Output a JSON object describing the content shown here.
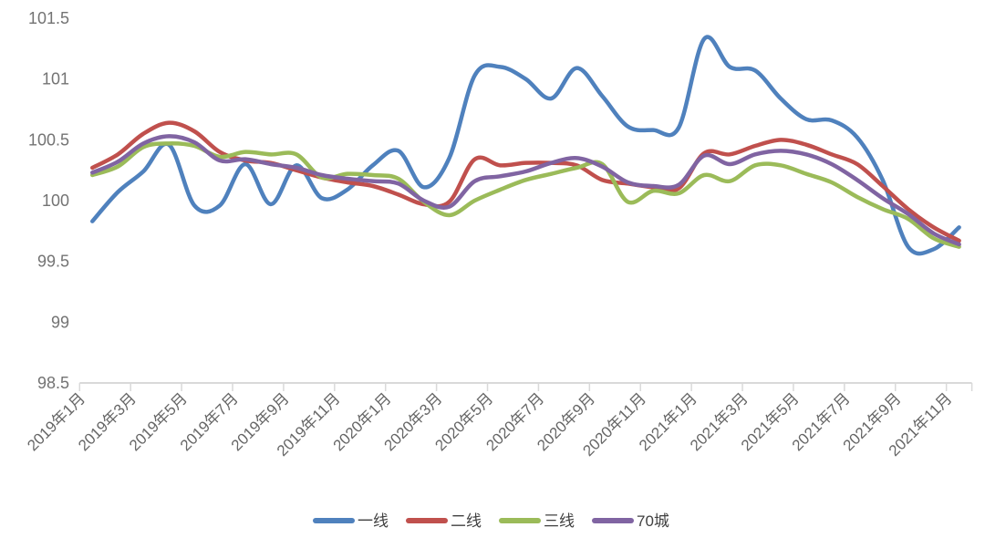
{
  "chart_data": {
    "type": "line",
    "title": "",
    "smooth": true,
    "grid": false,
    "background": "#ffffff",
    "axis_color": "#d9d9d9",
    "ylim": [
      98.5,
      101.5
    ],
    "ytick_step": 0.5,
    "ytick_labels": [
      "98.5",
      "99",
      "99.5",
      "100",
      "100.5",
      "101",
      "101.5"
    ],
    "x": [
      "2019年1月",
      "2019年2月",
      "2019年3月",
      "2019年4月",
      "2019年5月",
      "2019年6月",
      "2019年7月",
      "2019年8月",
      "2019年9月",
      "2019年10月",
      "2019年11月",
      "2019年12月",
      "2020年1月",
      "2020年2月",
      "2020年3月",
      "2020年4月",
      "2020年5月",
      "2020年6月",
      "2020年7月",
      "2020年8月",
      "2020年9月",
      "2020年10月",
      "2020年11月",
      "2020年12月",
      "2021年1月",
      "2021年2月",
      "2021年3月",
      "2021年4月",
      "2021年5月",
      "2021年6月",
      "2021年7月",
      "2021年8月",
      "2021年9月",
      "2021年10月",
      "2021年11月"
    ],
    "x_tick_labels": [
      "2019年1月",
      "2019年3月",
      "2019年5月",
      "2019年7月",
      "2019年9月",
      "2019年11月",
      "2020年1月",
      "2020年3月",
      "2020年5月",
      "2020年7月",
      "2020年9月",
      "2020年11月",
      "2021年1月",
      "2021年3月",
      "2021年5月",
      "2021年7月",
      "2021年9月",
      "2021年11月"
    ],
    "legend_position": "bottom",
    "series": [
      {
        "name": "一线",
        "color": "#4F81BD",
        "values": [
          99.83,
          100.07,
          100.24,
          100.46,
          99.96,
          99.96,
          100.3,
          99.97,
          100.29,
          100.02,
          100.09,
          100.29,
          100.41,
          100.11,
          100.35,
          101.03,
          101.1,
          101.0,
          100.84,
          101.09,
          100.86,
          100.61,
          100.58,
          100.6,
          101.33,
          101.1,
          101.07,
          100.84,
          100.67,
          100.66,
          100.52,
          100.17,
          99.62,
          99.6,
          99.78
        ]
      },
      {
        "name": "二线",
        "color": "#C0504D",
        "values": [
          100.27,
          100.38,
          100.55,
          100.64,
          100.57,
          100.4,
          100.33,
          100.31,
          100.25,
          100.19,
          100.15,
          100.12,
          100.05,
          99.97,
          99.99,
          100.34,
          100.29,
          100.31,
          100.31,
          100.29,
          100.17,
          100.14,
          100.11,
          100.1,
          100.39,
          100.38,
          100.45,
          100.5,
          100.46,
          100.38,
          100.3,
          100.12,
          99.93,
          99.78,
          99.67
        ]
      },
      {
        "name": "三线",
        "color": "#9BBB59",
        "values": [
          100.21,
          100.28,
          100.44,
          100.47,
          100.45,
          100.36,
          100.4,
          100.38,
          100.38,
          100.19,
          100.22,
          100.21,
          100.18,
          99.99,
          99.88,
          100.0,
          100.09,
          100.17,
          100.22,
          100.27,
          100.3,
          99.99,
          100.08,
          100.06,
          100.21,
          100.16,
          100.29,
          100.29,
          100.22,
          100.15,
          100.03,
          99.93,
          99.85,
          99.69,
          99.62
        ]
      },
      {
        "name": "70城",
        "color": "#8064A2",
        "values": [
          100.23,
          100.32,
          100.47,
          100.53,
          100.48,
          100.33,
          100.34,
          100.3,
          100.27,
          100.21,
          100.18,
          100.16,
          100.14,
          100.0,
          99.95,
          100.16,
          100.2,
          100.24,
          100.31,
          100.35,
          100.28,
          100.15,
          100.12,
          100.13,
          100.37,
          100.3,
          100.38,
          100.41,
          100.38,
          100.3,
          100.17,
          100.02,
          99.89,
          99.73,
          99.64
        ]
      }
    ]
  }
}
